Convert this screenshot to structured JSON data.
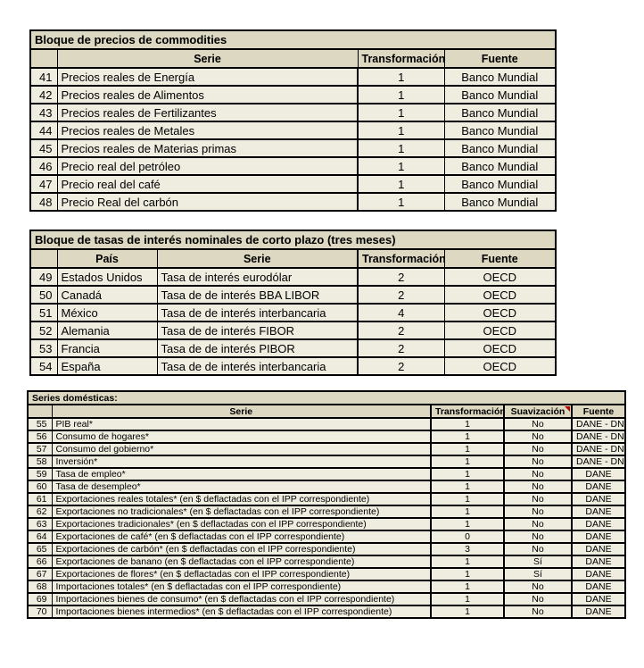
{
  "colors": {
    "title_header_bg": "#dcd8c1",
    "row_bg": "#efece0",
    "border": "#000000",
    "comment_marker": "#c00000"
  },
  "tables": [
    {
      "title": "Bloque de precios de commodities",
      "columns": [
        "",
        "Serie",
        "Transformación",
        "Fuente"
      ],
      "fields": [
        "num",
        "serie",
        "transformacion",
        "fuente"
      ],
      "rows": [
        {
          "num": "41",
          "serie": "Precios reales de Energía",
          "transformacion": "1",
          "fuente": "Banco Mundial"
        },
        {
          "num": "42",
          "serie": "Precios reales de Alimentos",
          "transformacion": "1",
          "fuente": "Banco Mundial"
        },
        {
          "num": "43",
          "serie": "Precios reales de Fertilizantes",
          "transformacion": "1",
          "fuente": "Banco Mundial"
        },
        {
          "num": "44",
          "serie": "Precios reales de Metales",
          "transformacion": "1",
          "fuente": "Banco Mundial"
        },
        {
          "num": "45",
          "serie": "Precios reales de Materias primas",
          "transformacion": "1",
          "fuente": "Banco Mundial"
        },
        {
          "num": "46",
          "serie": "Precio real del petróleo",
          "transformacion": "1",
          "fuente": "Banco Mundial"
        },
        {
          "num": "47",
          "serie": "Precio real del café",
          "transformacion": "1",
          "fuente": "Banco Mundial"
        },
        {
          "num": "48",
          "serie": "Precio Real del carbón",
          "transformacion": "1",
          "fuente": "Banco Mundial"
        }
      ]
    },
    {
      "title": "Bloque de tasas de interés nominales de corto plazo (tres meses)",
      "columns": [
        "",
        "País",
        "Serie",
        "Transformación",
        "Fuente"
      ],
      "fields": [
        "num",
        "pais",
        "serie",
        "transformacion",
        "fuente"
      ],
      "rows": [
        {
          "num": "49",
          "pais": "Estados Unidos",
          "serie": "Tasa de interés eurodólar",
          "transformacion": "2",
          "fuente": "OECD"
        },
        {
          "num": "50",
          "pais": "Canadá",
          "serie": "Tasa de de interés BBA LIBOR",
          "transformacion": "2",
          "fuente": "OECD"
        },
        {
          "num": "51",
          "pais": "México",
          "serie": "Tasa de de interés interbancaria",
          "transformacion": "4",
          "fuente": "OECD"
        },
        {
          "num": "52",
          "pais": "Alemania",
          "serie": "Tasa de de interés FIBOR",
          "transformacion": "2",
          "fuente": "OECD"
        },
        {
          "num": "53",
          "pais": "Francia",
          "serie": "Tasa de de interés PIBOR",
          "transformacion": "2",
          "fuente": "OECD"
        },
        {
          "num": "54",
          "pais": "España",
          "serie": "Tasa de de interés interbancaria",
          "transformacion": "2",
          "fuente": "OECD"
        }
      ]
    },
    {
      "title": "Series domésticas:",
      "columns": [
        "",
        "Serie",
        "Transformación",
        "Suavización",
        "Fuente"
      ],
      "fields": [
        "num",
        "serie",
        "transformacion",
        "suavizacion",
        "fuente"
      ],
      "header_comment_marker": "suavizacion",
      "rows": [
        {
          "num": "55",
          "serie": "PIB real*",
          "transformacion": "1",
          "suavizacion": "No",
          "fuente": "DANE - DNP"
        },
        {
          "num": "56",
          "serie": "Consumo de hogares*",
          "transformacion": "1",
          "suavizacion": "No",
          "fuente": "DANE - DNP"
        },
        {
          "num": "57",
          "serie": "Consumo del gobierno*",
          "transformacion": "1",
          "suavizacion": "No",
          "fuente": "DANE - DNP"
        },
        {
          "num": "58",
          "serie": "Inversión*",
          "transformacion": "1",
          "suavizacion": "No",
          "fuente": "DANE - DNP"
        },
        {
          "num": "59",
          "serie": "Tasa de empleo*",
          "transformacion": "1",
          "suavizacion": "No",
          "fuente": "DANE"
        },
        {
          "num": "60",
          "serie": "Tasa de desempleo*",
          "transformacion": "1",
          "suavizacion": "No",
          "fuente": "DANE"
        },
        {
          "num": "61",
          "serie": "Exportaciones reales totales* (en $ deflactadas con el IPP correspondiente)",
          "transformacion": "1",
          "suavizacion": "No",
          "fuente": "DANE"
        },
        {
          "num": "62",
          "serie": "Exportaciones no tradicionales* (en $ deflactadas con el IPP correspondiente)",
          "transformacion": "1",
          "suavizacion": "No",
          "fuente": "DANE"
        },
        {
          "num": "63",
          "serie": "Exportaciones tradicionales* (en $ deflactadas con el IPP correspondiente)",
          "transformacion": "1",
          "suavizacion": "No",
          "fuente": "DANE"
        },
        {
          "num": "64",
          "serie": "Exportaciones de café* (en $ deflactadas con el IPP correspondiente)",
          "transformacion": "0",
          "suavizacion": "No",
          "fuente": "DANE"
        },
        {
          "num": "65",
          "serie": "Exportaciones de carbón* (en $ deflactadas con el IPP correspondiente)",
          "transformacion": "3",
          "suavizacion": "No",
          "fuente": "DANE"
        },
        {
          "num": "66",
          "serie": "Exportaciones de banano (en $ deflactadas con el IPP correspondiente)",
          "transformacion": "1",
          "suavizacion": "Sí",
          "fuente": "DANE"
        },
        {
          "num": "67",
          "serie": "Exportaciones de flores* (en $ deflactadas con el IPP correspondiente)",
          "transformacion": "1",
          "suavizacion": "Sí",
          "fuente": "DANE"
        },
        {
          "num": "68",
          "serie": "Importaciones totales* (en $ deflactadas con el IPP correspondiente)",
          "transformacion": "1",
          "suavizacion": "No",
          "fuente": "DANE"
        },
        {
          "num": "69",
          "serie": "Importaciones bienes de consumo* (en $ deflactadas con el IPP correspondiente)",
          "transformacion": "1",
          "suavizacion": "No",
          "fuente": "DANE"
        },
        {
          "num": "70",
          "serie": "Importaciones bienes intermedios* (en $ deflactadas con el IPP correspondiente)",
          "transformacion": "1",
          "suavizacion": "No",
          "fuente": "DANE"
        }
      ]
    }
  ]
}
